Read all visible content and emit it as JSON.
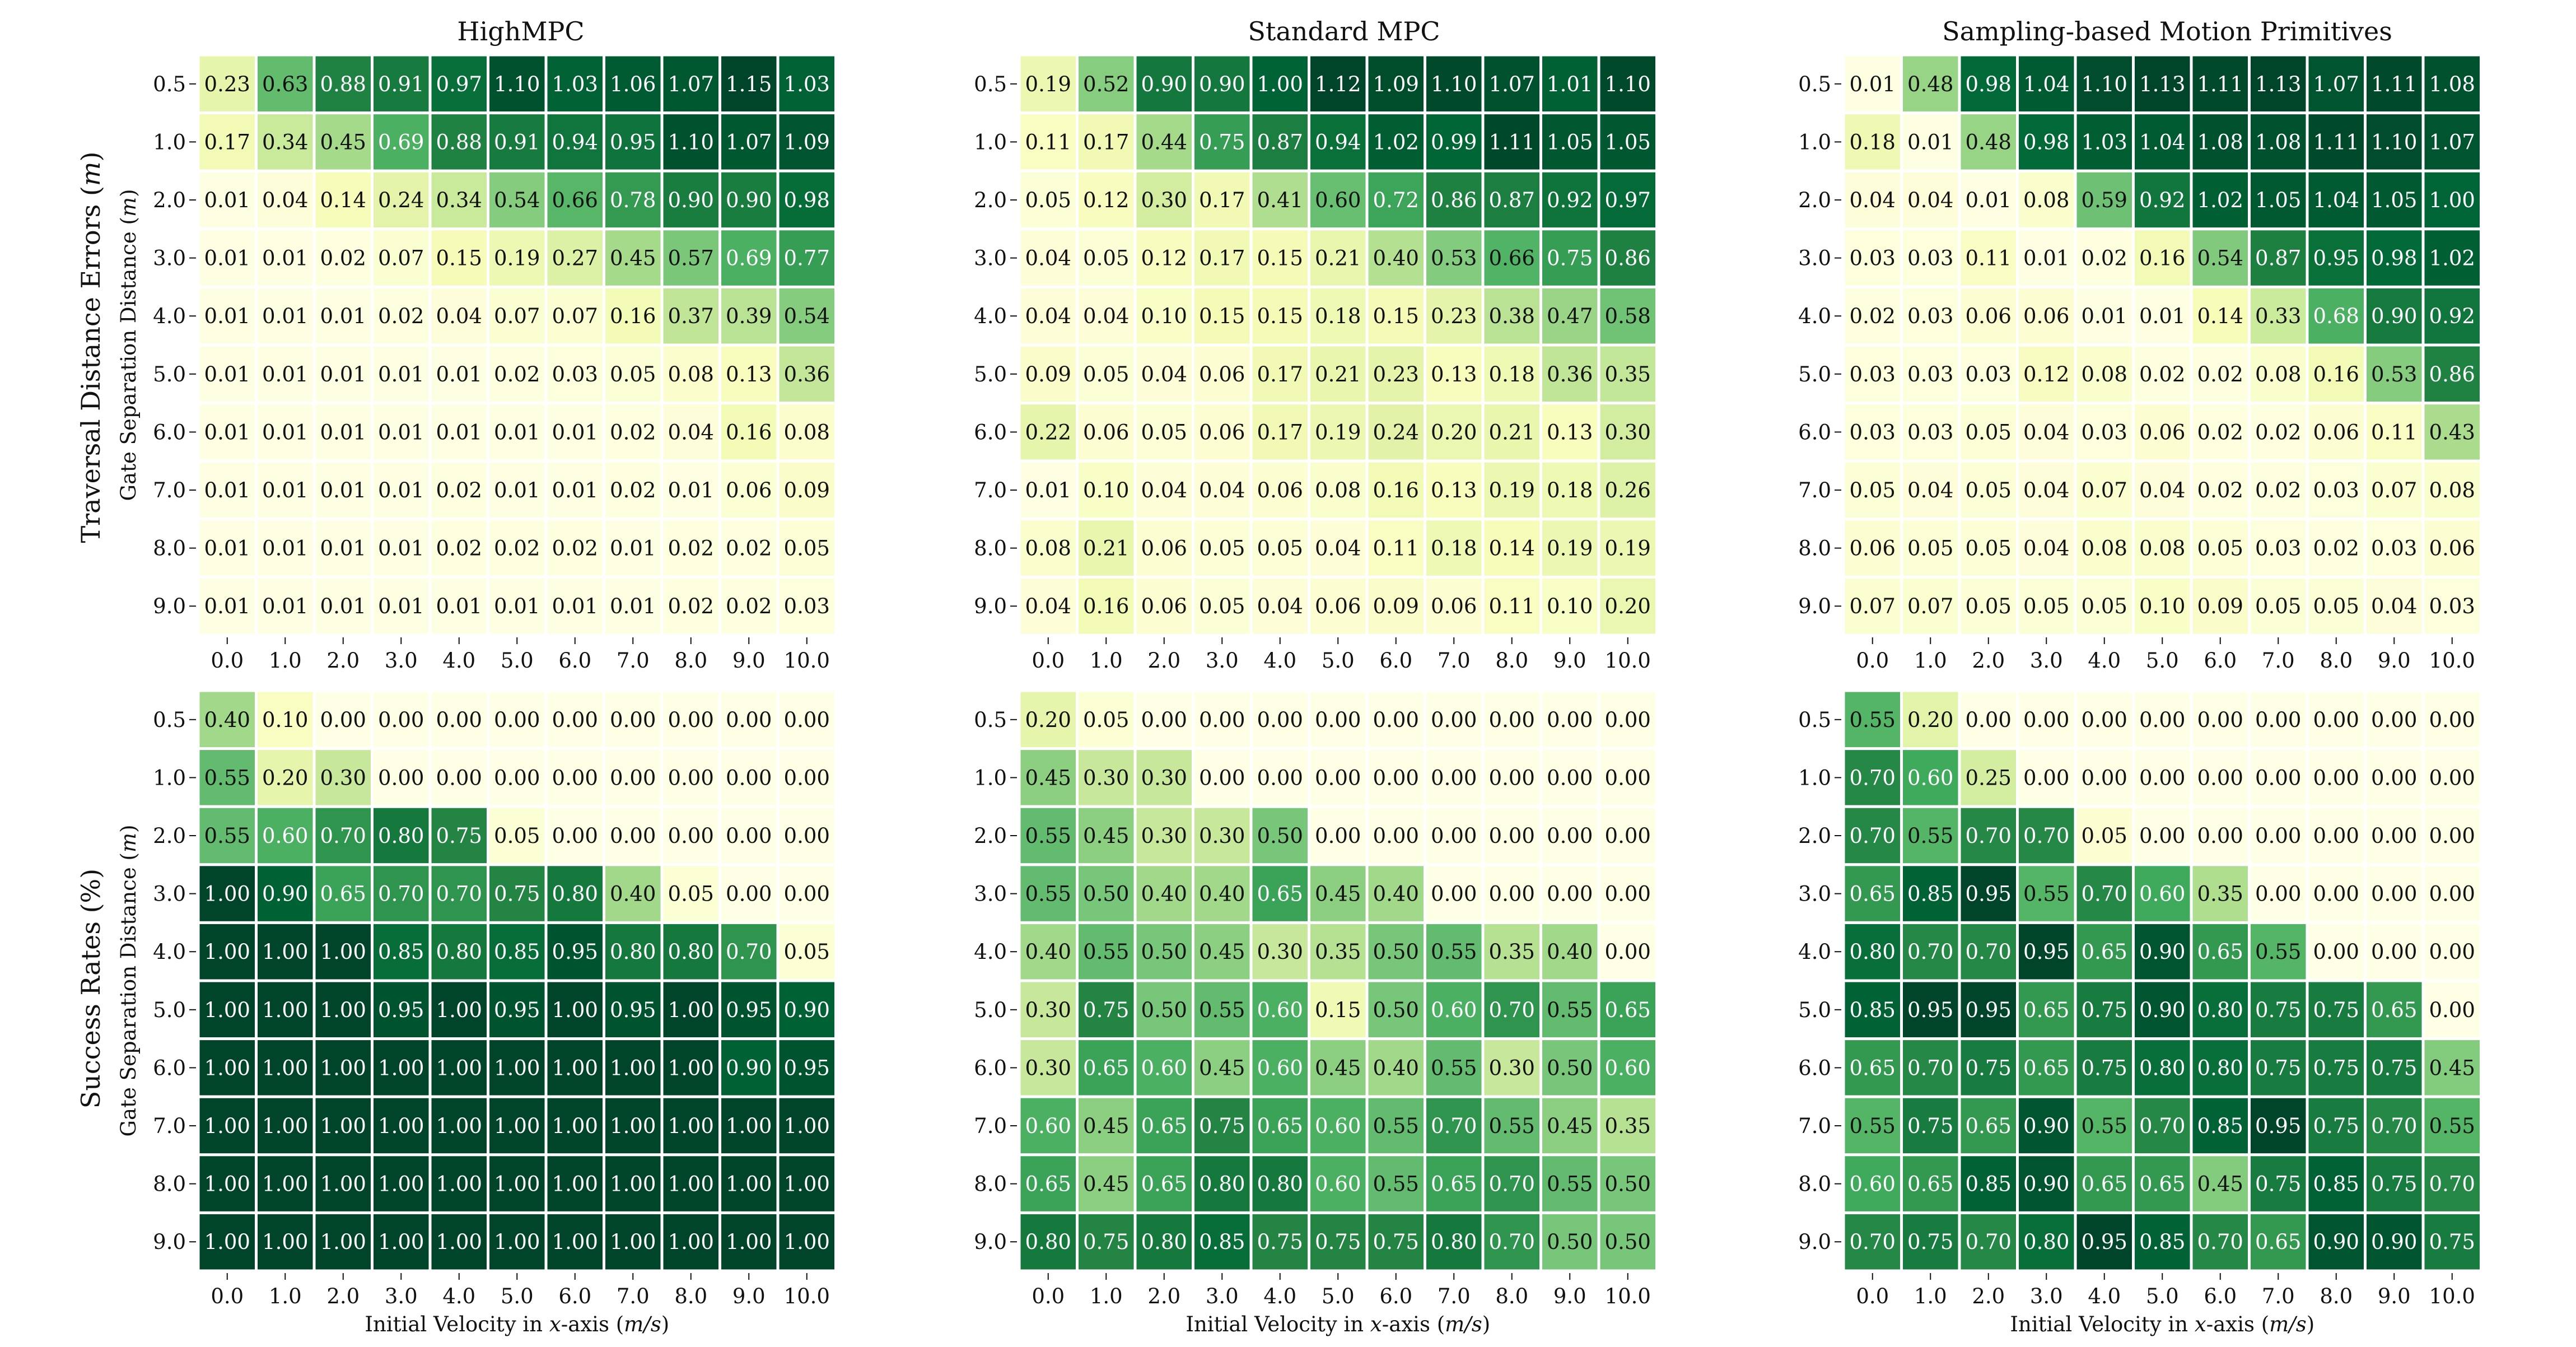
{
  "figure": {
    "row_labels": [
      "Traversal Distance Errors (m)",
      "Success Rates (%)"
    ],
    "panel_ylabel": "Gate Separation Distance (m)",
    "panel_xlabel": "Initial Velocity in x-axis (m/s)",
    "methods": [
      "HighMPC",
      "Standard MPC",
      "Sampling-based Motion Primitives"
    ]
  },
  "chart_data": [
    {
      "type": "heatmap",
      "title": "HighMPC",
      "metric": "Traversal Distance Errors (m)",
      "xlabel": "",
      "ylabel": "Gate Separation Distance (m)",
      "x": [
        "0.0",
        "1.0",
        "2.0",
        "3.0",
        "4.0",
        "5.0",
        "6.0",
        "7.0",
        "8.0",
        "9.0",
        "10.0"
      ],
      "y": [
        "0.5",
        "1.0",
        "2.0",
        "3.0",
        "4.0",
        "5.0",
        "6.0",
        "7.0",
        "8.0",
        "9.0"
      ],
      "colormap": "YlGn",
      "vmin": 0,
      "vmax": 1.15,
      "values": [
        [
          0.23,
          0.63,
          0.88,
          0.91,
          0.97,
          1.1,
          1.03,
          1.06,
          1.07,
          1.15,
          1.03
        ],
        [
          0.17,
          0.34,
          0.45,
          0.69,
          0.88,
          0.91,
          0.94,
          0.95,
          1.1,
          1.07,
          1.09
        ],
        [
          0.01,
          0.04,
          0.14,
          0.24,
          0.34,
          0.54,
          0.66,
          0.78,
          0.9,
          0.9,
          0.98
        ],
        [
          0.01,
          0.01,
          0.02,
          0.07,
          0.15,
          0.19,
          0.27,
          0.45,
          0.57,
          0.69,
          0.77
        ],
        [
          0.01,
          0.01,
          0.01,
          0.02,
          0.04,
          0.07,
          0.07,
          0.16,
          0.37,
          0.39,
          0.54
        ],
        [
          0.01,
          0.01,
          0.01,
          0.01,
          0.01,
          0.02,
          0.03,
          0.05,
          0.08,
          0.13,
          0.36
        ],
        [
          0.01,
          0.01,
          0.01,
          0.01,
          0.01,
          0.01,
          0.01,
          0.02,
          0.04,
          0.16,
          0.08
        ],
        [
          0.01,
          0.01,
          0.01,
          0.01,
          0.02,
          0.01,
          0.01,
          0.02,
          0.01,
          0.06,
          0.09
        ],
        [
          0.01,
          0.01,
          0.01,
          0.01,
          0.02,
          0.02,
          0.02,
          0.01,
          0.02,
          0.02,
          0.05
        ],
        [
          0.01,
          0.01,
          0.01,
          0.01,
          0.01,
          0.01,
          0.01,
          0.01,
          0.02,
          0.02,
          0.03
        ]
      ]
    },
    {
      "type": "heatmap",
      "title": "Standard MPC",
      "metric": "Traversal Distance Errors (m)",
      "xlabel": "",
      "ylabel": "",
      "x": [
        "0.0",
        "1.0",
        "2.0",
        "3.0",
        "4.0",
        "5.0",
        "6.0",
        "7.0",
        "8.0",
        "9.0",
        "10.0"
      ],
      "y": [
        "0.5",
        "1.0",
        "2.0",
        "3.0",
        "4.0",
        "5.0",
        "6.0",
        "7.0",
        "8.0",
        "9.0"
      ],
      "colormap": "YlGn",
      "vmin": 0,
      "vmax": 1.12,
      "values": [
        [
          0.19,
          0.52,
          0.9,
          0.9,
          1.0,
          1.12,
          1.09,
          1.1,
          1.07,
          1.01,
          1.1
        ],
        [
          0.11,
          0.17,
          0.44,
          0.75,
          0.87,
          0.94,
          1.02,
          0.99,
          1.11,
          1.05,
          1.05
        ],
        [
          0.05,
          0.12,
          0.3,
          0.17,
          0.41,
          0.6,
          0.72,
          0.86,
          0.87,
          0.92,
          0.97
        ],
        [
          0.04,
          0.05,
          0.12,
          0.17,
          0.15,
          0.21,
          0.4,
          0.53,
          0.66,
          0.75,
          0.86
        ],
        [
          0.04,
          0.04,
          0.1,
          0.15,
          0.15,
          0.18,
          0.15,
          0.23,
          0.38,
          0.47,
          0.58
        ],
        [
          0.09,
          0.05,
          0.04,
          0.06,
          0.17,
          0.21,
          0.23,
          0.13,
          0.18,
          0.36,
          0.35
        ],
        [
          0.22,
          0.06,
          0.05,
          0.06,
          0.17,
          0.19,
          0.24,
          0.2,
          0.21,
          0.13,
          0.3
        ],
        [
          0.01,
          0.1,
          0.04,
          0.04,
          0.06,
          0.08,
          0.16,
          0.13,
          0.19,
          0.18,
          0.26
        ],
        [
          0.08,
          0.21,
          0.06,
          0.05,
          0.05,
          0.04,
          0.11,
          0.18,
          0.14,
          0.19,
          0.19
        ],
        [
          0.04,
          0.16,
          0.06,
          0.05,
          0.04,
          0.06,
          0.09,
          0.06,
          0.11,
          0.1,
          0.2
        ]
      ]
    },
    {
      "type": "heatmap",
      "title": "Sampling-based Motion Primitives",
      "metric": "Traversal Distance Errors (m)",
      "xlabel": "",
      "ylabel": "",
      "x": [
        "0.0",
        "1.0",
        "2.0",
        "3.0",
        "4.0",
        "5.0",
        "6.0",
        "7.0",
        "8.0",
        "9.0",
        "10.0"
      ],
      "y": [
        "0.5",
        "1.0",
        "2.0",
        "3.0",
        "4.0",
        "5.0",
        "6.0",
        "7.0",
        "8.0",
        "9.0"
      ],
      "colormap": "YlGn",
      "vmin": 0,
      "vmax": 1.13,
      "values": [
        [
          0.01,
          0.48,
          0.98,
          1.04,
          1.1,
          1.13,
          1.11,
          1.13,
          1.07,
          1.11,
          1.08
        ],
        [
          0.18,
          0.01,
          0.48,
          0.98,
          1.03,
          1.04,
          1.08,
          1.08,
          1.11,
          1.1,
          1.07
        ],
        [
          0.04,
          0.04,
          0.01,
          0.08,
          0.59,
          0.92,
          1.02,
          1.05,
          1.04,
          1.05,
          1.0
        ],
        [
          0.03,
          0.03,
          0.11,
          0.01,
          0.02,
          0.16,
          0.54,
          0.87,
          0.95,
          0.98,
          1.02
        ],
        [
          0.02,
          0.03,
          0.06,
          0.06,
          0.01,
          0.01,
          0.14,
          0.33,
          0.68,
          0.9,
          0.92
        ],
        [
          0.03,
          0.03,
          0.03,
          0.12,
          0.08,
          0.02,
          0.02,
          0.08,
          0.16,
          0.53,
          0.86
        ],
        [
          0.03,
          0.03,
          0.05,
          0.04,
          0.03,
          0.06,
          0.02,
          0.02,
          0.06,
          0.11,
          0.43
        ],
        [
          0.05,
          0.04,
          0.05,
          0.04,
          0.07,
          0.04,
          0.02,
          0.02,
          0.03,
          0.07,
          0.08
        ],
        [
          0.06,
          0.05,
          0.05,
          0.04,
          0.08,
          0.08,
          0.05,
          0.03,
          0.02,
          0.03,
          0.06
        ],
        [
          0.07,
          0.07,
          0.05,
          0.05,
          0.05,
          0.1,
          0.09,
          0.05,
          0.05,
          0.04,
          0.03
        ]
      ]
    },
    {
      "type": "heatmap",
      "title": "",
      "metric": "Success Rates (%)",
      "xlabel": "Initial Velocity in x-axis (m/s)",
      "ylabel": "Gate Separation Distance (m)",
      "x": [
        "0.0",
        "1.0",
        "2.0",
        "3.0",
        "4.0",
        "5.0",
        "6.0",
        "7.0",
        "8.0",
        "9.0",
        "10.0"
      ],
      "y": [
        "0.5",
        "1.0",
        "2.0",
        "3.0",
        "4.0",
        "5.0",
        "6.0",
        "7.0",
        "8.0",
        "9.0"
      ],
      "colormap": "YlGn",
      "vmin": 0,
      "vmax": 1.0,
      "values": [
        [
          0.4,
          0.1,
          0.0,
          0.0,
          0.0,
          0.0,
          0.0,
          0.0,
          0.0,
          0.0,
          0.0
        ],
        [
          0.55,
          0.2,
          0.3,
          0.0,
          0.0,
          0.0,
          0.0,
          0.0,
          0.0,
          0.0,
          0.0
        ],
        [
          0.55,
          0.6,
          0.7,
          0.8,
          0.75,
          0.05,
          0.0,
          0.0,
          0.0,
          0.0,
          0.0
        ],
        [
          1.0,
          0.9,
          0.65,
          0.7,
          0.7,
          0.75,
          0.8,
          0.4,
          0.05,
          0.0,
          0.0
        ],
        [
          1.0,
          1.0,
          1.0,
          0.85,
          0.8,
          0.85,
          0.95,
          0.8,
          0.8,
          0.7,
          0.05
        ],
        [
          1.0,
          1.0,
          1.0,
          0.95,
          1.0,
          0.95,
          1.0,
          0.95,
          1.0,
          0.95,
          0.9
        ],
        [
          1.0,
          1.0,
          1.0,
          1.0,
          1.0,
          1.0,
          1.0,
          1.0,
          1.0,
          0.9,
          0.95
        ],
        [
          1.0,
          1.0,
          1.0,
          1.0,
          1.0,
          1.0,
          1.0,
          1.0,
          1.0,
          1.0,
          1.0
        ],
        [
          1.0,
          1.0,
          1.0,
          1.0,
          1.0,
          1.0,
          1.0,
          1.0,
          1.0,
          1.0,
          1.0
        ],
        [
          1.0,
          1.0,
          1.0,
          1.0,
          1.0,
          1.0,
          1.0,
          1.0,
          1.0,
          1.0,
          1.0
        ]
      ]
    },
    {
      "type": "heatmap",
      "title": "",
      "metric": "Success Rates (%)",
      "xlabel": "Initial Velocity in x-axis (m/s)",
      "ylabel": "",
      "x": [
        "0.0",
        "1.0",
        "2.0",
        "3.0",
        "4.0",
        "5.0",
        "6.0",
        "7.0",
        "8.0",
        "9.0",
        "10.0"
      ],
      "y": [
        "0.5",
        "1.0",
        "2.0",
        "3.0",
        "4.0",
        "5.0",
        "6.0",
        "7.0",
        "8.0",
        "9.0"
      ],
      "colormap": "YlGn",
      "vmin": 0,
      "vmax": 1.0,
      "values": [
        [
          0.2,
          0.05,
          0.0,
          0.0,
          0.0,
          0.0,
          0.0,
          0.0,
          0.0,
          0.0,
          0.0
        ],
        [
          0.45,
          0.3,
          0.3,
          0.0,
          0.0,
          0.0,
          0.0,
          0.0,
          0.0,
          0.0,
          0.0
        ],
        [
          0.55,
          0.45,
          0.3,
          0.3,
          0.5,
          0.0,
          0.0,
          0.0,
          0.0,
          0.0,
          0.0
        ],
        [
          0.55,
          0.5,
          0.4,
          0.4,
          0.65,
          0.45,
          0.4,
          0.0,
          0.0,
          0.0,
          0.0
        ],
        [
          0.4,
          0.55,
          0.5,
          0.45,
          0.3,
          0.35,
          0.5,
          0.55,
          0.35,
          0.4,
          0.0
        ],
        [
          0.3,
          0.75,
          0.5,
          0.55,
          0.6,
          0.15,
          0.5,
          0.6,
          0.7,
          0.55,
          0.65
        ],
        [
          0.3,
          0.65,
          0.6,
          0.45,
          0.6,
          0.45,
          0.4,
          0.55,
          0.3,
          0.5,
          0.6
        ],
        [
          0.6,
          0.45,
          0.65,
          0.75,
          0.65,
          0.6,
          0.55,
          0.7,
          0.55,
          0.45,
          0.35
        ],
        [
          0.65,
          0.45,
          0.65,
          0.8,
          0.8,
          0.6,
          0.55,
          0.65,
          0.7,
          0.55,
          0.5
        ],
        [
          0.8,
          0.75,
          0.8,
          0.85,
          0.75,
          0.75,
          0.75,
          0.8,
          0.7,
          0.5,
          0.5
        ]
      ]
    },
    {
      "type": "heatmap",
      "title": "",
      "metric": "Success Rates (%)",
      "xlabel": "Initial Velocity in x-axis (m/s)",
      "ylabel": "",
      "x": [
        "0.0",
        "1.0",
        "2.0",
        "3.0",
        "4.0",
        "5.0",
        "6.0",
        "7.0",
        "8.0",
        "9.0",
        "10.0"
      ],
      "y": [
        "0.5",
        "1.0",
        "2.0",
        "3.0",
        "4.0",
        "5.0",
        "6.0",
        "7.0",
        "8.0",
        "9.0"
      ],
      "colormap": "YlGn",
      "vmin": 0,
      "vmax": 0.95,
      "values": [
        [
          0.55,
          0.2,
          0.0,
          0.0,
          0.0,
          0.0,
          0.0,
          0.0,
          0.0,
          0.0,
          0.0
        ],
        [
          0.7,
          0.6,
          0.25,
          0.0,
          0.0,
          0.0,
          0.0,
          0.0,
          0.0,
          0.0,
          0.0
        ],
        [
          0.7,
          0.55,
          0.7,
          0.7,
          0.05,
          0.0,
          0.0,
          0.0,
          0.0,
          0.0,
          0.0
        ],
        [
          0.65,
          0.85,
          0.95,
          0.55,
          0.7,
          0.6,
          0.35,
          0.0,
          0.0,
          0.0,
          0.0
        ],
        [
          0.8,
          0.7,
          0.7,
          0.95,
          0.65,
          0.9,
          0.65,
          0.55,
          0.0,
          0.0,
          0.0
        ],
        [
          0.85,
          0.95,
          0.95,
          0.65,
          0.75,
          0.9,
          0.8,
          0.75,
          0.75,
          0.65,
          0.0
        ],
        [
          0.65,
          0.7,
          0.75,
          0.65,
          0.75,
          0.8,
          0.8,
          0.75,
          0.75,
          0.75,
          0.45
        ],
        [
          0.55,
          0.75,
          0.65,
          0.9,
          0.55,
          0.7,
          0.85,
          0.95,
          0.75,
          0.7,
          0.55
        ],
        [
          0.6,
          0.65,
          0.85,
          0.9,
          0.65,
          0.65,
          0.45,
          0.75,
          0.85,
          0.75,
          0.7
        ],
        [
          0.7,
          0.75,
          0.7,
          0.8,
          0.95,
          0.85,
          0.7,
          0.65,
          0.9,
          0.9,
          0.75
        ]
      ]
    }
  ]
}
